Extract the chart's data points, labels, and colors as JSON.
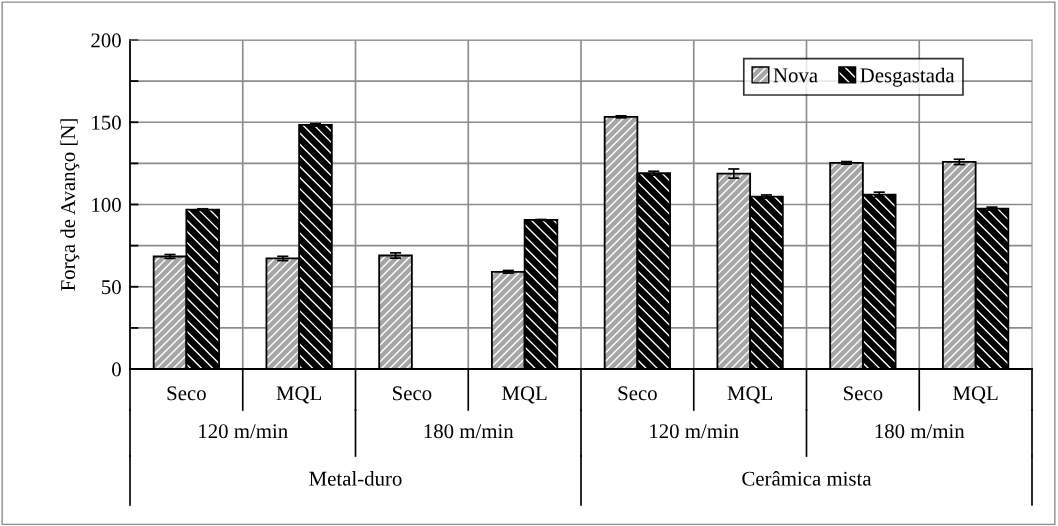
{
  "chart_data": {
    "type": "bar",
    "ylabel": "Força de Avanço [N]",
    "categories": [
      "Seco",
      "MQL",
      "Seco",
      "MQL",
      "Seco",
      "MQL",
      "Seco",
      "MQL"
    ],
    "series": [
      {
        "name": "Nova",
        "color": "#a6a6a6",
        "values": [
          68.4,
          67.2,
          69.0,
          59.1,
          153.3,
          118.8,
          125.3,
          125.9
        ],
        "errors": [
          1.2,
          1.3,
          1.6,
          0.8,
          0.6,
          2.8,
          0.8,
          1.6
        ]
      },
      {
        "name": "Desgastada",
        "color": "#000000",
        "values": [
          96.9,
          148.4,
          null,
          90.6,
          119.0,
          104.8,
          106.0,
          97.5
        ],
        "errors": [
          0.5,
          0.8,
          null,
          0.3,
          1.2,
          1.0,
          1.5,
          0.9
        ]
      }
    ],
    "annotations": [
      "120 m/min",
      "180 m/min",
      "120 m/min",
      "180 m/min",
      "Metal-duro",
      "Cerâmica mista"
    ],
    "ylim": [
      0,
      200
    ],
    "yticks": [
      0,
      {
        "value": 25,
        "label": null
      },
      50,
      {
        "value": 75,
        "label": null
      },
      100,
      {
        "value": 125,
        "label": null
      },
      150,
      {
        "value": 175,
        "label": null
      },
      200
    ],
    "grid": "y",
    "legend": "top right"
  }
}
